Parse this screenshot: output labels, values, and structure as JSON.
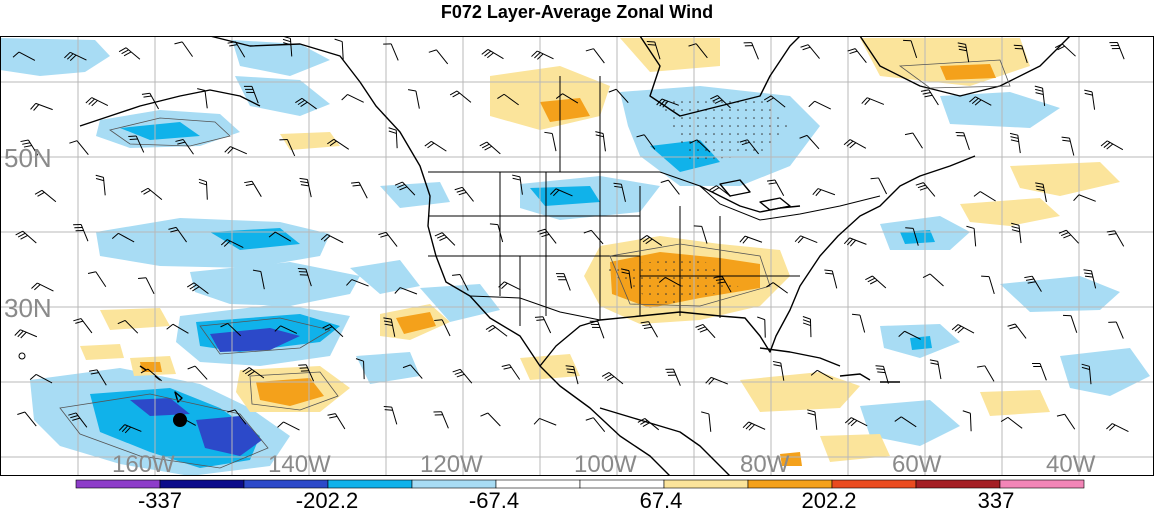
{
  "title": "F072 Layer-Average Zonal Wind",
  "latitude_labels": [
    "50N",
    "30N"
  ],
  "longitude_labels": [
    "160W",
    "140W",
    "120W",
    "100W",
    "80W",
    "60W",
    "40W"
  ],
  "colorbar": {
    "colors": [
      "#8d3cc9",
      "#0b0b8a",
      "#2c49c9",
      "#10b2ea",
      "#a8dcf4",
      "#ffffff",
      "#ffffff",
      "#fbe49b",
      "#f4a11b",
      "#ea4b1f",
      "#a41e24",
      "#f285b7"
    ],
    "labels": [
      "-337",
      "-202.2",
      "-67.4",
      "67.4",
      "202.2",
      "337"
    ]
  },
  "legend_icons": [
    "wind-barb-icon",
    "position-marker-icon"
  ]
}
